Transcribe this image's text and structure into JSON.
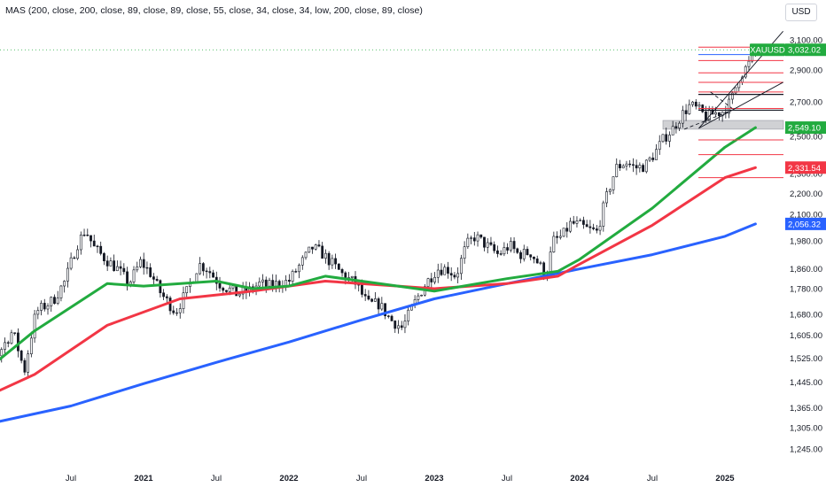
{
  "indicator_legend": "MAS (200, close, 200, close, 89, close, 89, close, 55, close, 34, close, 34, low, 200, close, 89, close)",
  "currency": "USD",
  "chart_data": {
    "type": "candlestick",
    "symbol": "XAUUSD",
    "y_scale": "log",
    "y_ticks": [
      3100,
      2900,
      2700,
      2500,
      2300,
      2200,
      2100,
      1980,
      1860,
      1780,
      1680,
      1605,
      1525,
      1445,
      1365,
      1305,
      1245
    ],
    "y_tick_labels": [
      "3,100.00",
      "2,900.00",
      "2,700.00",
      "2,500.00",
      "2,300.00",
      "2,200.00",
      "2,100.00",
      "1,980.00",
      "1,860.00",
      "1,780.00",
      "1,680.00",
      "1,605.00",
      "1,525.00",
      "1,445.00",
      "1,365.00",
      "1,305.00",
      "1,245.00"
    ],
    "x_labels": [
      {
        "label": "Jul",
        "t": 2020.5
      },
      {
        "label": "2021",
        "t": 2021.0
      },
      {
        "label": "Jul",
        "t": 2021.5
      },
      {
        "label": "2022",
        "t": 2022.0
      },
      {
        "label": "Jul",
        "t": 2022.5
      },
      {
        "label": "2023",
        "t": 2023.0
      },
      {
        "label": "Jul",
        "t": 2023.5
      },
      {
        "label": "2024",
        "t": 2024.0
      },
      {
        "label": "Jul",
        "t": 2024.5
      },
      {
        "label": "2025",
        "t": 2025.0
      }
    ],
    "price_path": [
      [
        2019.75,
        1500
      ],
      [
        2019.85,
        1530
      ],
      [
        2019.92,
        1475
      ],
      [
        2020.02,
        1555
      ],
      [
        2020.1,
        1620
      ],
      [
        2020.18,
        1480
      ],
      [
        2020.26,
        1690
      ],
      [
        2020.38,
        1735
      ],
      [
        2020.46,
        1810
      ],
      [
        2020.54,
        1960
      ],
      [
        2020.6,
        2030
      ],
      [
        2020.66,
        1950
      ],
      [
        2020.74,
        1900
      ],
      [
        2020.82,
        1860
      ],
      [
        2020.9,
        1800
      ],
      [
        2020.98,
        1890
      ],
      [
        2021.05,
        1840
      ],
      [
        2021.12,
        1760
      ],
      [
        2021.22,
        1690
      ],
      [
        2021.3,
        1770
      ],
      [
        2021.38,
        1880
      ],
      [
        2021.44,
        1860
      ],
      [
        2021.52,
        1800
      ],
      [
        2021.58,
        1780
      ],
      [
        2021.64,
        1760
      ],
      [
        2021.72,
        1770
      ],
      [
        2021.8,
        1800
      ],
      [
        2021.86,
        1790
      ],
      [
        2021.92,
        1800
      ],
      [
        2022.0,
        1810
      ],
      [
        2022.08,
        1880
      ],
      [
        2022.16,
        1950
      ],
      [
        2022.22,
        1930
      ],
      [
        2022.3,
        1880
      ],
      [
        2022.38,
        1830
      ],
      [
        2022.46,
        1800
      ],
      [
        2022.54,
        1720
      ],
      [
        2022.62,
        1720
      ],
      [
        2022.7,
        1660
      ],
      [
        2022.78,
        1630
      ],
      [
        2022.86,
        1720
      ],
      [
        2022.94,
        1800
      ],
      [
        2023.02,
        1860
      ],
      [
        2023.09,
        1860
      ],
      [
        2023.15,
        1830
      ],
      [
        2023.22,
        1960
      ],
      [
        2023.28,
        2000
      ],
      [
        2023.36,
        1960
      ],
      [
        2023.44,
        1920
      ],
      [
        2023.52,
        1960
      ],
      [
        2023.58,
        1920
      ],
      [
        2023.66,
        1930
      ],
      [
        2023.72,
        1880
      ],
      [
        2023.77,
        1830
      ],
      [
        2023.82,
        1980
      ],
      [
        2023.88,
        2000
      ],
      [
        2023.94,
        2060
      ],
      [
        2024.0,
        2050
      ],
      [
        2024.06,
        2030
      ],
      [
        2024.12,
        2020
      ],
      [
        2024.18,
        2170
      ],
      [
        2024.25,
        2330
      ],
      [
        2024.32,
        2360
      ],
      [
        2024.38,
        2330
      ],
      [
        2024.45,
        2340
      ],
      [
        2024.52,
        2410
      ],
      [
        2024.58,
        2490
      ],
      [
        2024.64,
        2540
      ],
      [
        2024.7,
        2620
      ],
      [
        2024.76,
        2680
      ],
      [
        2024.82,
        2650
      ],
      [
        2024.87,
        2610
      ],
      [
        2024.92,
        2630
      ],
      [
        2024.98,
        2640
      ],
      [
        2025.04,
        2700
      ],
      [
        2025.1,
        2860
      ],
      [
        2025.16,
        2930
      ],
      [
        2025.21,
        3032
      ]
    ],
    "series": [
      {
        "color": "#2962ff",
        "points": [
          [
            2019.75,
            1300
          ],
          [
            2020.5,
            1370
          ],
          [
            2021.0,
            1440
          ],
          [
            2021.5,
            1510
          ],
          [
            2022.0,
            1580
          ],
          [
            2022.5,
            1660
          ],
          [
            2023.0,
            1740
          ],
          [
            2023.5,
            1800
          ],
          [
            2024.0,
            1860
          ],
          [
            2024.5,
            1920
          ],
          [
            2025.0,
            2000
          ],
          [
            2025.21,
            2056.32
          ]
        ]
      },
      {
        "color": "#f23645",
        "points": [
          [
            2019.75,
            1365
          ],
          [
            2020.25,
            1470
          ],
          [
            2020.75,
            1640
          ],
          [
            2021.25,
            1740
          ],
          [
            2021.75,
            1770
          ],
          [
            2022.25,
            1810
          ],
          [
            2022.75,
            1790
          ],
          [
            2023.0,
            1780
          ],
          [
            2023.5,
            1800
          ],
          [
            2023.85,
            1830
          ],
          [
            2024.0,
            1880
          ],
          [
            2024.5,
            2050
          ],
          [
            2025.0,
            2280
          ],
          [
            2025.21,
            2331.54
          ]
        ]
      },
      {
        "color": "#22ab3f",
        "points": [
          [
            2019.75,
            1420
          ],
          [
            2020.25,
            1620
          ],
          [
            2020.75,
            1800
          ],
          [
            2021.0,
            1790
          ],
          [
            2021.5,
            1810
          ],
          [
            2021.75,
            1780
          ],
          [
            2022.0,
            1790
          ],
          [
            2022.25,
            1830
          ],
          [
            2022.75,
            1790
          ],
          [
            2023.0,
            1770
          ],
          [
            2023.5,
            1820
          ],
          [
            2023.85,
            1850
          ],
          [
            2024.0,
            1900
          ],
          [
            2024.5,
            2130
          ],
          [
            2025.0,
            2440
          ],
          [
            2025.21,
            2549.1
          ]
        ]
      }
    ],
    "last_price": 3032.02,
    "level_lines": [
      3050,
      2960,
      2880,
      2820,
      2760,
      2660,
      2480,
      2400,
      2280
    ],
    "blue_level": 3000,
    "black_levels": [
      2745,
      2650
    ],
    "gray_zone": [
      2540,
      2590
    ],
    "badges": [
      {
        "label": "XAUUSD",
        "value": "3,032.02",
        "price": 3032.02,
        "color": "#22ab3f"
      },
      {
        "label": "",
        "value": "2,549.10",
        "price": 2549.1,
        "color": "#22ab3f"
      },
      {
        "label": "",
        "value": "2,331.54",
        "price": 2331.54,
        "color": "#f23645"
      },
      {
        "label": "",
        "value": "2,056.32",
        "price": 2056.32,
        "color": "#2962ff"
      }
    ]
  }
}
